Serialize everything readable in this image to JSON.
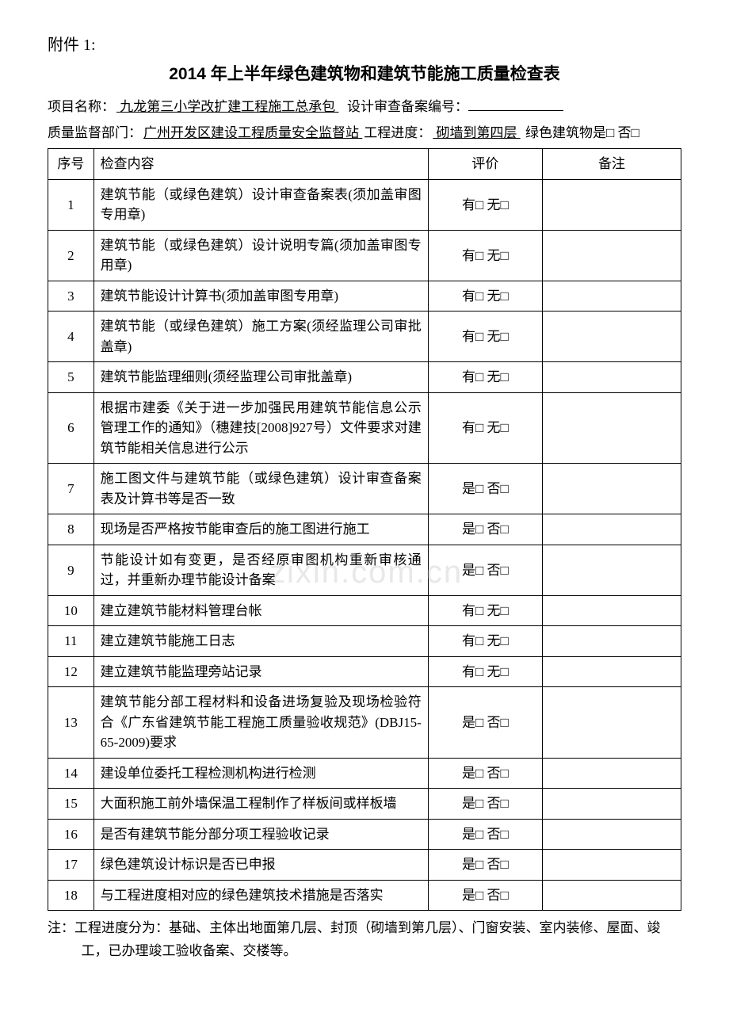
{
  "attachment_label": "附件 1:",
  "title": "2014 年上半年绿色建筑物和建筑节能施工质量检查表",
  "project_name_label": "项目名称：",
  "project_name_value": " 九龙第三小学改扩建工程施工总承包 ",
  "design_review_label": "设计审查备案编号：",
  "quality_dept_label": "质量监督部门：",
  "quality_dept_value": "广州开发区建设工程质量安全监督站 ",
  "progress_label": "工程进度：",
  "progress_value": " 砌墙到第四层 ",
  "green_building_label": "绿色建筑物是□ 否□",
  "headers": {
    "num": "序号",
    "content": "检查内容",
    "eval": "评价",
    "remark": "备注"
  },
  "eval_options": {
    "have": "有□ 无□",
    "yes": "是□ 否□"
  },
  "rows": [
    {
      "num": "1",
      "content": "建筑节能（或绿色建筑）设计审查备案表(须加盖审图专用章)",
      "eval": "have"
    },
    {
      "num": "2",
      "content": "建筑节能（或绿色建筑）设计说明专篇(须加盖审图专用章)",
      "eval": "have"
    },
    {
      "num": "3",
      "content": "建筑节能设计计算书(须加盖审图专用章)",
      "eval": "have"
    },
    {
      "num": "4",
      "content": "建筑节能（或绿色建筑）施工方案(须经监理公司审批盖章)",
      "eval": "have"
    },
    {
      "num": "5",
      "content": "建筑节能监理细则(须经监理公司审批盖章)",
      "eval": "have"
    },
    {
      "num": "6",
      "content": "根据市建委《关于进一步加强民用建筑节能信息公示管理工作的通知》（穗建技[2008]927号）文件要求对建筑节能相关信息进行公示",
      "eval": "have"
    },
    {
      "num": "7",
      "content": "施工图文件与建筑节能（或绿色建筑）设计审查备案表及计算书等是否一致",
      "eval": "yes"
    },
    {
      "num": "8",
      "content": "现场是否严格按节能审查后的施工图进行施工",
      "eval": "yes"
    },
    {
      "num": "9",
      "content": "节能设计如有变更，是否经原审图机构重新审核通过，并重新办理节能设计备案",
      "eval": "yes"
    },
    {
      "num": "10",
      "content": "建立建筑节能材料管理台帐",
      "eval": "have"
    },
    {
      "num": "11",
      "content": "建立建筑节能施工日志",
      "eval": "have"
    },
    {
      "num": "12",
      "content": "建立建筑节能监理旁站记录",
      "eval": "have"
    },
    {
      "num": "13",
      "content": "建筑节能分部工程材料和设备进场复验及现场检验符合《广东省建筑节能工程施工质量验收规范》(DBJ15-65-2009)要求",
      "eval": "yes"
    },
    {
      "num": "14",
      "content": "建设单位委托工程检测机构进行检测",
      "eval": "yes"
    },
    {
      "num": "15",
      "content": "大面积施工前外墙保温工程制作了样板间或样板墙",
      "eval": "yes"
    },
    {
      "num": "16",
      "content": "是否有建筑节能分部分项工程验收记录",
      "eval": "yes"
    },
    {
      "num": "17",
      "content": "绿色建筑设计标识是否已申报",
      "eval": "yes"
    },
    {
      "num": "18",
      "content": "与工程进度相对应的绿色建筑技术措施是否落实",
      "eval": "yes"
    }
  ],
  "note": "注：工程进度分为：基础、主体出地面第几层、封顶（砌墙到第几层）、门窗安装、室内装修、屋面、竣工，已办理竣工验收备案、交楼等。",
  "watermark": "zixin.com.cn"
}
